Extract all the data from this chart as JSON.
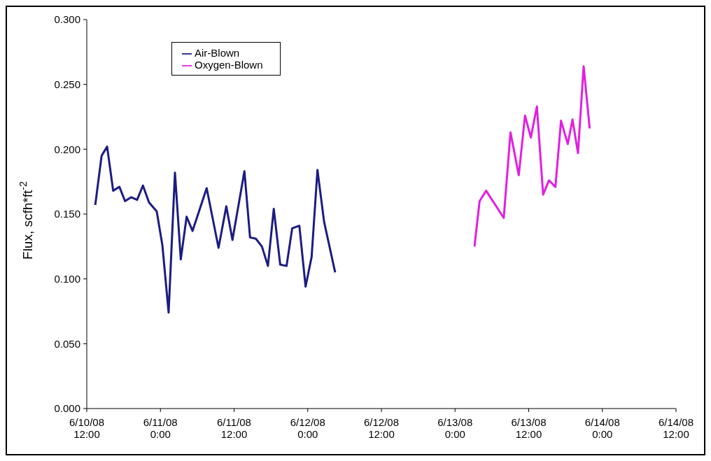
{
  "chart_data": {
    "type": "line",
    "ylabel": "Flux, scfh*ft$^{-2}$",
    "ylim": [
      0,
      0.3
    ],
    "yticks": [
      {
        "value": 0,
        "label": "0.000"
      },
      {
        "value": 0.05,
        "label": "0.050"
      },
      {
        "value": 0.1,
        "label": "0.100"
      },
      {
        "value": 0.15,
        "label": "0.150"
      },
      {
        "value": 0.2,
        "label": "0.200"
      },
      {
        "value": 0.25,
        "label": "0.250"
      },
      {
        "value": 0.3,
        "label": "0.300"
      }
    ],
    "xlim": [
      "--06-10T12:00",
      "--06-14T12:00"
    ],
    "xticks": [
      {
        "value": "--06-10T12:00",
        "label": "6/10/08\n12:00"
      },
      {
        "value": "--06-11T00:00",
        "label": "6/11/08\n0:00"
      },
      {
        "value": "--06-11T12:00",
        "label": "6/11/08\n12:00"
      },
      {
        "value": "--06-12T00:00",
        "label": "6/12/08\n0:00"
      },
      {
        "value": "--06-12T12:00",
        "label": "6/12/08\n12:00"
      },
      {
        "value": "--06-13T00:00",
        "label": "6/13/08\n0:00"
      },
      {
        "value": "--06-13T12:00",
        "label": "6/13/08\n12:00"
      },
      {
        "value": "--06-14T00:00",
        "label": "6/14/08\n0:00"
      },
      {
        "value": "--06-14T12:00",
        "label": "6/14/08\n12:00"
      }
    ],
    "grid": false,
    "legend": "top left",
    "marker": "none",
    "line_style": "solid",
    "series": [
      {
        "name": "Air-Blown",
        "color": "#1c1c82",
        "x": [
          "--06-10T13:23",
          "--06-10T14:25",
          "--06-10T15:19",
          "--06-10T16:18",
          "--06-10T17:19",
          "--06-10T18:14",
          "--06-10T19:13",
          "--06-10T20:12",
          "--06-10T21:09",
          "--06-10T22:08",
          "--06-10T23:24",
          "--06-11T00:19",
          "--06-11T01:20",
          "--06-11T02:22",
          "--06-11T03:19",
          "--06-11T04:16",
          "--06-11T05:14",
          "--06-11T07:32",
          "--06-11T09:28",
          "--06-11T10:44",
          "--06-11T11:44",
          "--06-11T13:41",
          "--06-11T14:36",
          "--06-11T15:33",
          "--06-11T16:32",
          "--06-11T17:31",
          "--06-11T18:28",
          "--06-11T19:31",
          "--06-11T20:33",
          "--06-11T21:28",
          "--06-11T22:38",
          "--06-11T23:39",
          "--06-12T00:38",
          "--06-12T01:35",
          "--06-12T02:40",
          "--06-12T04:28"
        ],
        "values": [
          0.157,
          0.195,
          0.202,
          0.168,
          0.171,
          0.16,
          0.163,
          0.161,
          0.172,
          0.159,
          0.152,
          0.126,
          0.074,
          0.182,
          0.115,
          0.148,
          0.137,
          0.17,
          0.124,
          0.156,
          0.13,
          0.183,
          0.132,
          0.131,
          0.125,
          0.11,
          0.154,
          0.111,
          0.11,
          0.139,
          0.141,
          0.094,
          0.117,
          0.184,
          0.144,
          0.105
        ]
      },
      {
        "name": "Oxygen-Blown",
        "color": "#e020e0",
        "x": [
          "--06-13T03:10",
          "--06-13T04:00",
          "--06-13T05:04",
          "--06-13T07:56",
          "--06-13T09:02",
          "--06-13T10:23",
          "--06-13T11:24",
          "--06-13T12:21",
          "--06-13T13:20",
          "--06-13T14:21",
          "--06-13T15:18",
          "--06-13T16:21",
          "--06-13T17:16",
          "--06-13T18:22",
          "--06-13T19:08",
          "--06-13T20:02",
          "--06-13T20:57",
          "--06-13T21:56"
        ],
        "values": [
          0.125,
          0.16,
          0.168,
          0.147,
          0.213,
          0.18,
          0.226,
          0.209,
          0.233,
          0.165,
          0.176,
          0.171,
          0.222,
          0.204,
          0.223,
          0.197,
          0.264,
          0.216
        ]
      }
    ]
  }
}
